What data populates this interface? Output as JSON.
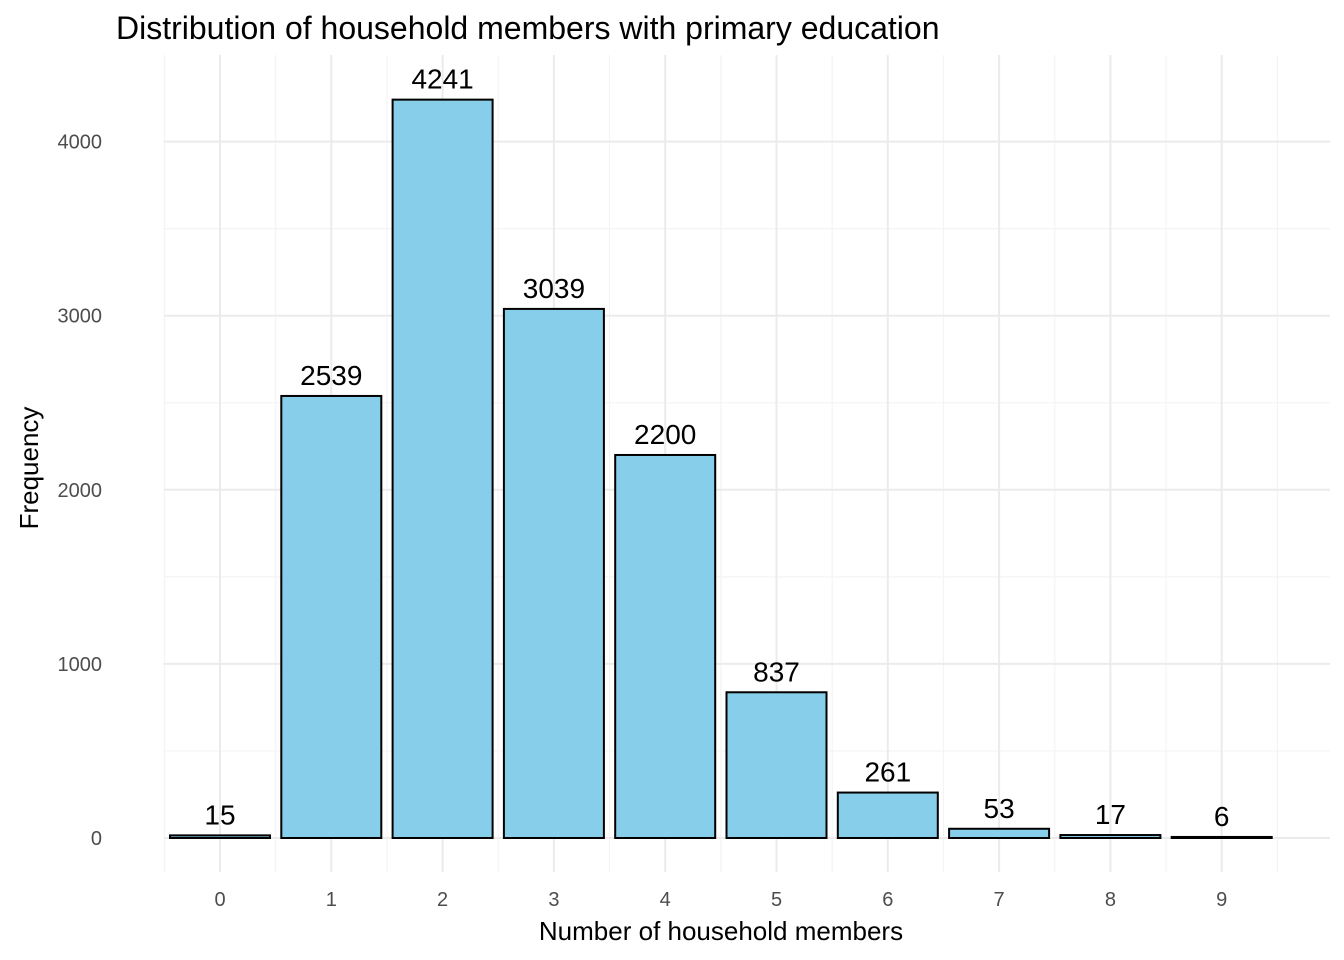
{
  "chart_data": {
    "type": "bar",
    "title": "Distribution of household members with primary education",
    "xlabel": "Number of household members",
    "ylabel": "Frequency",
    "categories": [
      "0",
      "1",
      "2",
      "3",
      "4",
      "5",
      "6",
      "7",
      "8",
      "9"
    ],
    "values": [
      15,
      2539,
      4241,
      3039,
      2200,
      837,
      261,
      53,
      17,
      6
    ],
    "y_ticks": [
      0,
      1000,
      2000,
      3000,
      4000
    ],
    "ylim": [
      0,
      4400
    ],
    "grid": true,
    "legend": "none",
    "colors": {
      "bar_fill": "#87ceeb",
      "bar_outline": "#000000"
    }
  }
}
